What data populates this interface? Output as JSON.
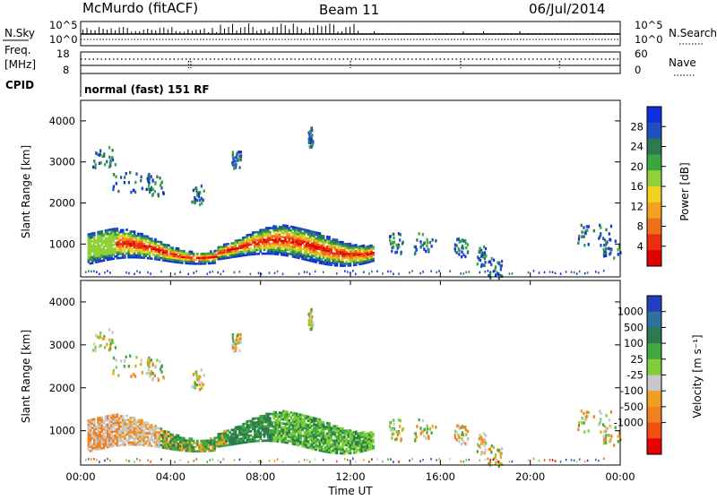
{
  "header": {
    "station": "McMurdo (fitACF)",
    "beam": "Beam 11",
    "date": "06/Jul/2014"
  },
  "top_panels": {
    "nsky_label": "N.Sky",
    "nsky_ticks": [
      "10^5",
      "10^0"
    ],
    "nsky_right_ticks": [
      "10^5",
      "10^0"
    ],
    "nsearch_label": "N.Search",
    "freq_label": "Freq.",
    "freq_unit": "[MHz]",
    "freq_ticks": [
      "18",
      "8"
    ],
    "nave_ticks": [
      "60",
      "0"
    ],
    "nave_label": "Nave",
    "cpid_label": "CPID",
    "cpid_value": "normal (fast) 151 RF"
  },
  "chart_data": [
    {
      "type": "heatmap",
      "name": "power-panel",
      "ylabel": "Slant Range [km]",
      "y_ticks": [
        "1000",
        "2000",
        "3000",
        "4000"
      ],
      "y_tick_values": [
        1000,
        2000,
        3000,
        4000
      ],
      "ylim": [
        200,
        4500
      ],
      "xlim_hours": [
        0,
        24
      ],
      "colorbar": {
        "label": "Power [dB]",
        "ticks": [
          "4",
          "8",
          "12",
          "16",
          "20",
          "24",
          "28"
        ],
        "tick_values": [
          4,
          8,
          12,
          16,
          20,
          24,
          28
        ],
        "range": [
          0,
          32
        ],
        "colors": [
          "#1030e0",
          "#2050c0",
          "#2e7a50",
          "#3aa640",
          "#90d038",
          "#f0d020",
          "#f4a020",
          "#f07018",
          "#e83010",
          "#e00000"
        ]
      }
    },
    {
      "type": "heatmap",
      "name": "velocity-panel",
      "ylabel": "Slant Range [km]",
      "y_ticks": [
        "1000",
        "2000",
        "3000",
        "4000"
      ],
      "y_tick_values": [
        1000,
        2000,
        3000,
        4000
      ],
      "ylim": [
        200,
        4500
      ],
      "xlim_hours": [
        0,
        24
      ],
      "xlabel": "Time UT",
      "x_ticks": [
        "00:00",
        "04:00",
        "08:00",
        "12:00",
        "16:00",
        "20:00",
        "00:00"
      ],
      "colorbar": {
        "label": "Velocity [m s⁻¹]",
        "ticks": [
          "1000",
          "500",
          "100",
          "25",
          "-25",
          "-100",
          "-500",
          "-1000"
        ],
        "colors": [
          "#2040c0",
          "#3070a0",
          "#2e7a50",
          "#40a840",
          "#7ecf3a",
          "#c8c8c8",
          "#f0a020",
          "#f08020",
          "#f05010",
          "#e80000"
        ]
      }
    }
  ]
}
